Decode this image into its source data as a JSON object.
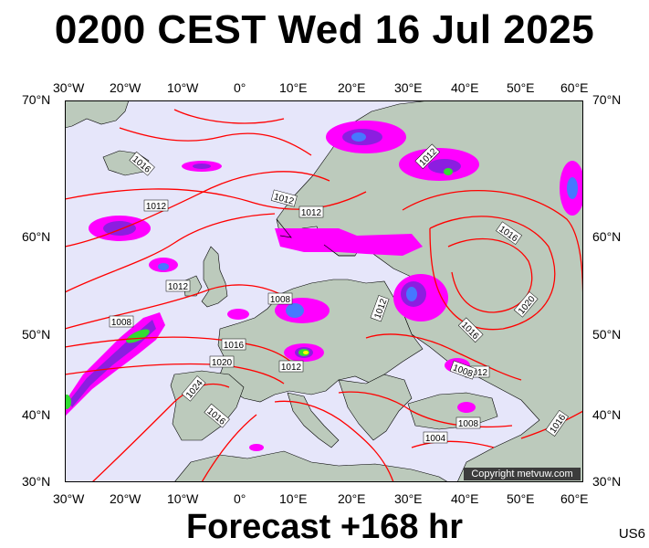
{
  "header": {
    "title": "0200 CEST Wed 16 Jul 2025"
  },
  "footer": {
    "forecast": "Forecast +168 hr",
    "code": "US6"
  },
  "map": {
    "lon_labels": [
      "30°W",
      "20°W",
      "10°W",
      "0°",
      "10°E",
      "20°E",
      "30°E",
      "40°E",
      "50°E",
      "60°E"
    ],
    "lat_labels": [
      "70°N",
      "60°N",
      "50°N",
      "40°N",
      "30°N"
    ],
    "isobar_labels": [
      "1016",
      "1012",
      "1012",
      "1012",
      "1008",
      "1016",
      "1020",
      "1024",
      "1016",
      "1012",
      "1012",
      "1008",
      "1016",
      "1020",
      "1016",
      "1012",
      "1008",
      "1008",
      "1004",
      "1012",
      "1012",
      "1016"
    ],
    "credit": "Copyright metvuw.com",
    "colors": {
      "ocean": "#e6e6fa",
      "land": "#bccabc",
      "isobar": "#ff0000",
      "rain_magenta": "#ff00ff",
      "rain_purple": "#8c1ee0",
      "rain_blue": "#4678ff",
      "rain_green": "#32dc32"
    }
  }
}
